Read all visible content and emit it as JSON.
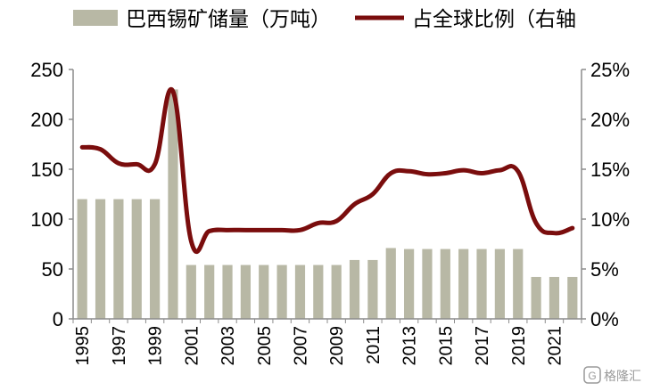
{
  "chart_data": {
    "type": "bar+line",
    "title": "",
    "xlabel": "",
    "ylabel": "",
    "ylim": [
      0,
      250
    ],
    "y2lim": [
      0,
      25
    ],
    "yticks": [
      "0",
      "50",
      "100",
      "150",
      "200",
      "250"
    ],
    "y2ticks": [
      "0%",
      "5%",
      "10%",
      "15%",
      "20%",
      "25%"
    ],
    "x_tick_labels": [
      "1995",
      "1997",
      "1999",
      "2001",
      "2003",
      "2005",
      "2007",
      "2009",
      "2011",
      "2013",
      "2015",
      "2017",
      "2019",
      "2021"
    ],
    "grid": false,
    "legend_position": "top",
    "categories": [
      "1995",
      "1996",
      "1997",
      "1998",
      "1999",
      "2000",
      "2001",
      "2002",
      "2003",
      "2004",
      "2005",
      "2006",
      "2007",
      "2008",
      "2009",
      "2010",
      "2011",
      "2012",
      "2013",
      "2014",
      "2015",
      "2016",
      "2017",
      "2018",
      "2019",
      "2020",
      "2021",
      "2022"
    ],
    "series": [
      {
        "name": "巴西锡矿储量（万吨）",
        "type": "bar",
        "axis": "left",
        "color": "#b8b8a5",
        "values": [
          120,
          120,
          120,
          120,
          120,
          230,
          54,
          54,
          54,
          54,
          54,
          54,
          54,
          54,
          54,
          59,
          59,
          71,
          70,
          70,
          70,
          70,
          70,
          70,
          70,
          42,
          42,
          42
        ]
      },
      {
        "name": "占全球比例（右轴",
        "type": "line",
        "axis": "right",
        "color": "#7a0d0d",
        "values": [
          17.2,
          17.0,
          15.6,
          15.5,
          15.5,
          22.8,
          7.8,
          8.8,
          8.9,
          8.9,
          8.9,
          8.9,
          8.9,
          9.6,
          9.8,
          11.5,
          12.5,
          14.6,
          14.8,
          14.5,
          14.6,
          14.9,
          14.6,
          14.9,
          14.8,
          9.6,
          8.6,
          9.1
        ]
      }
    ]
  },
  "watermark": {
    "text": "格隆汇",
    "icon": "g-logo-icon"
  }
}
